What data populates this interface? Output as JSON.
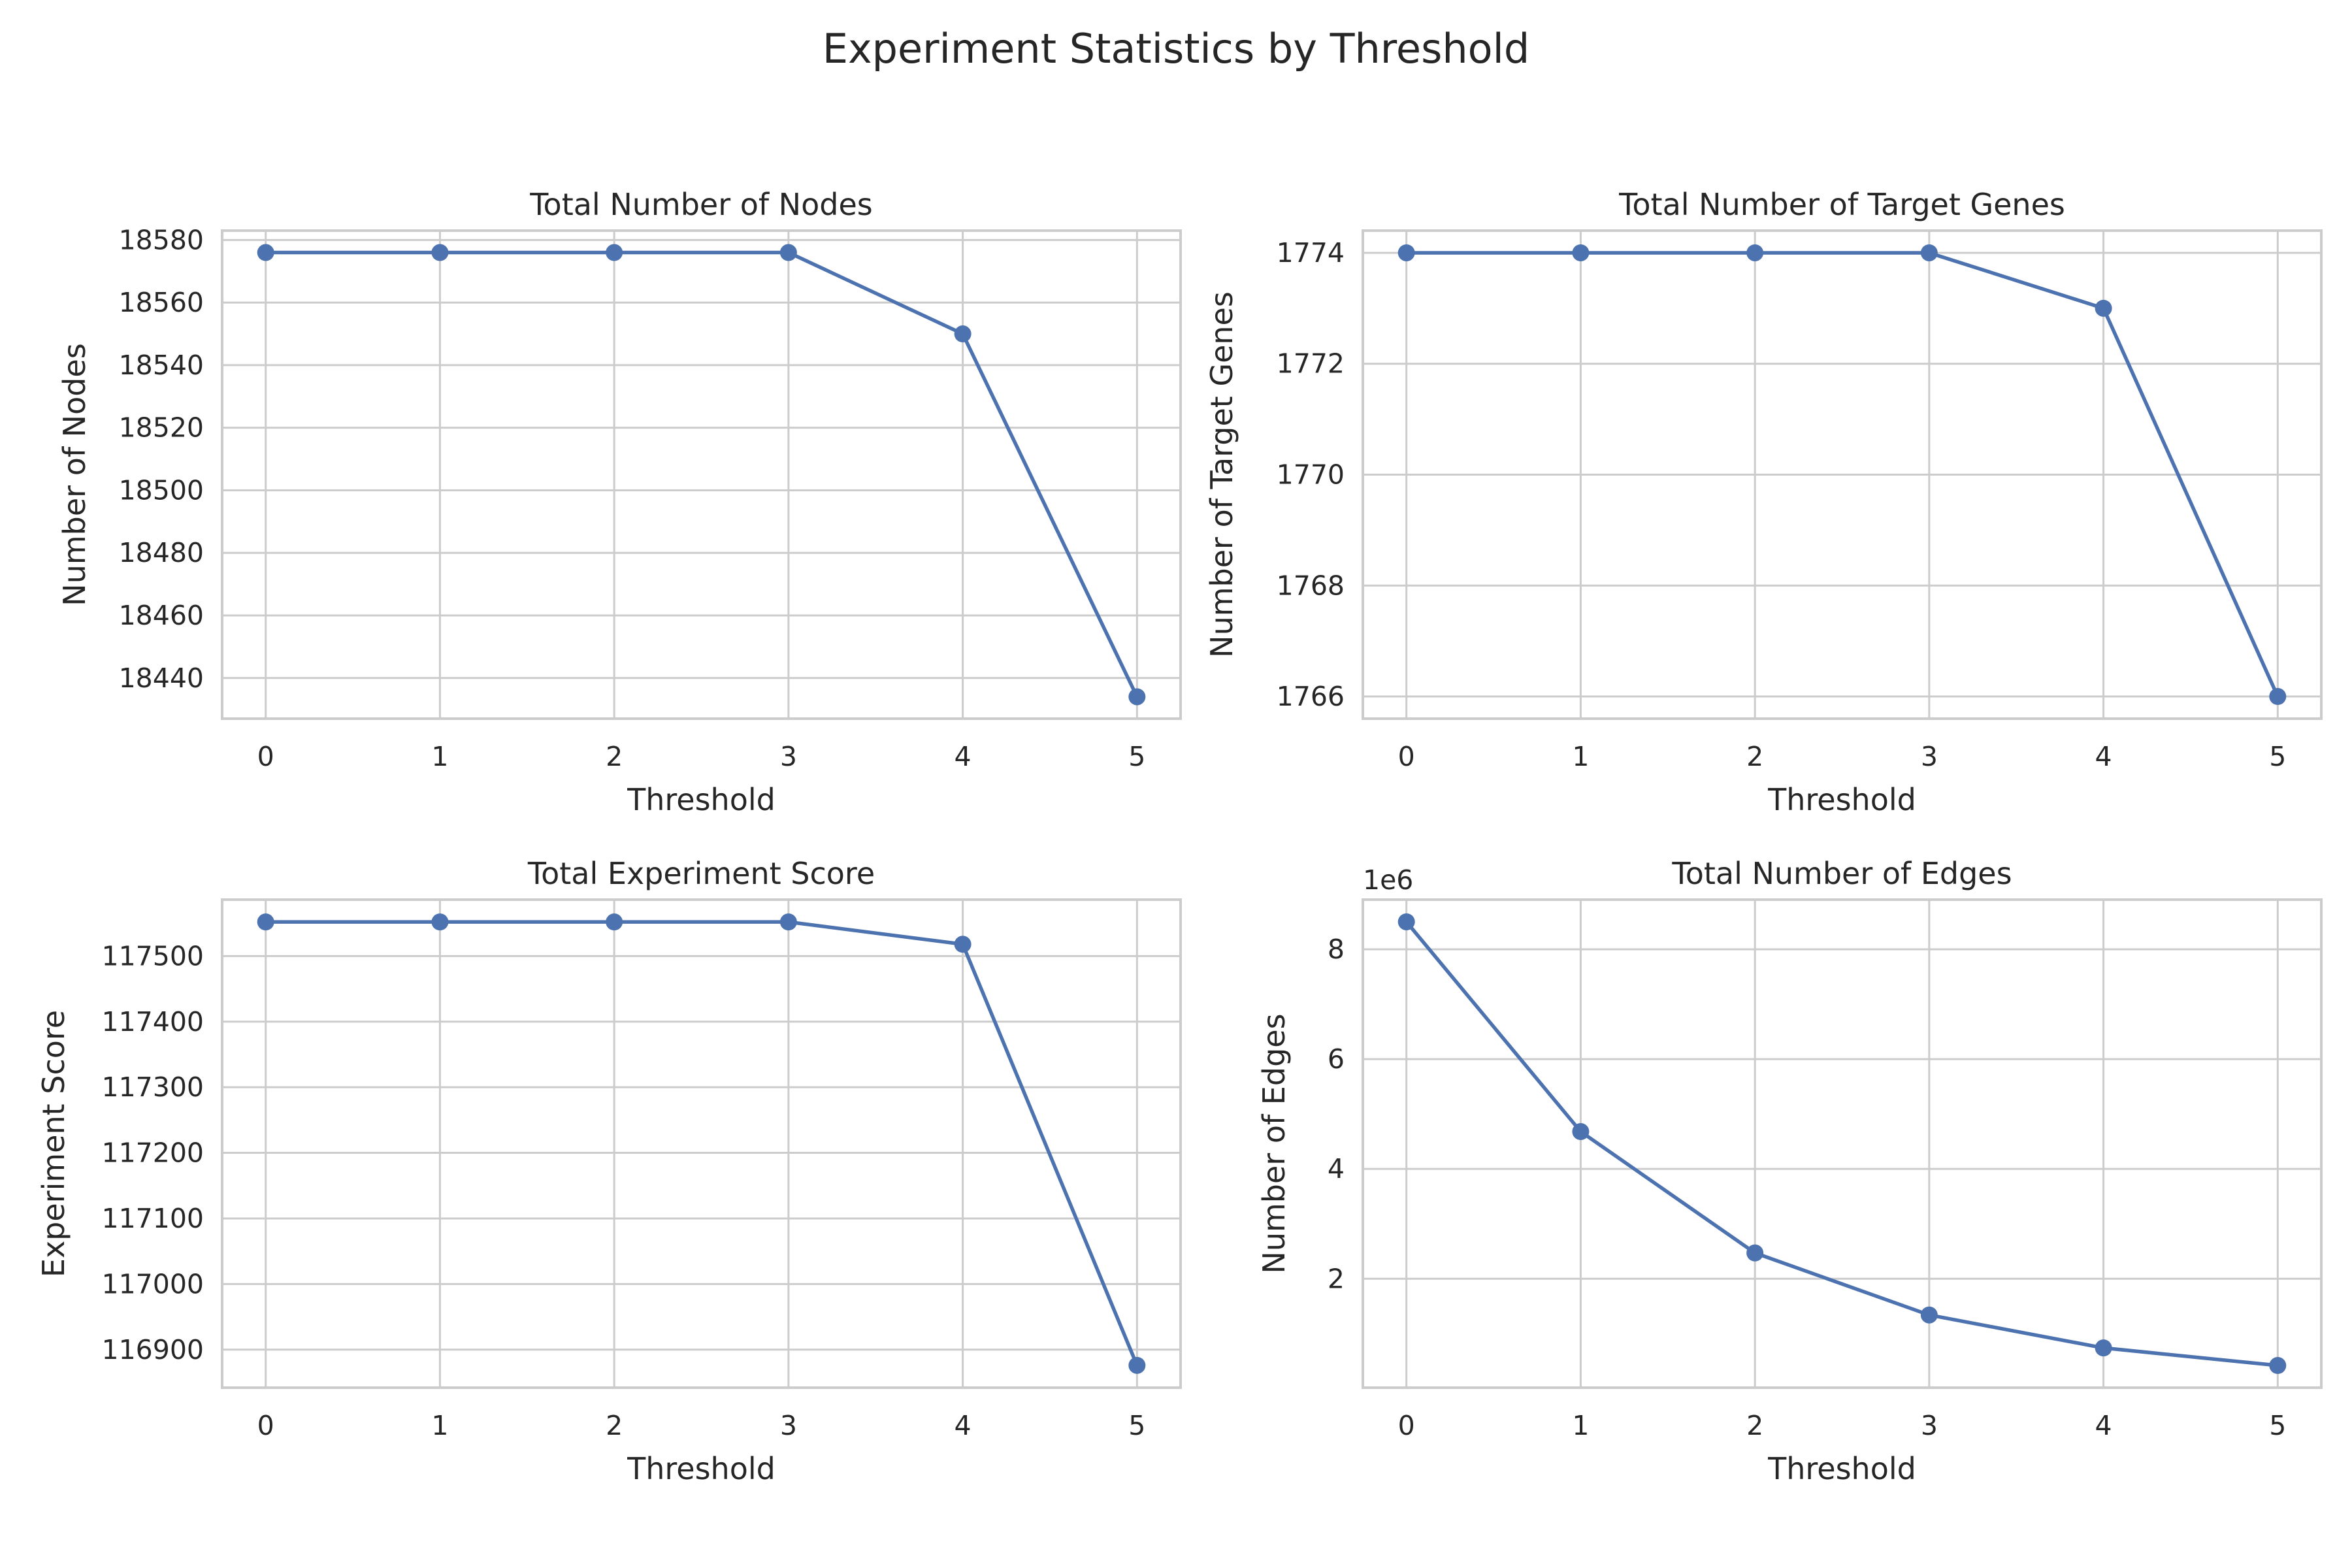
{
  "figure_title": "Experiment Statistics by Threshold",
  "colors": {
    "series": "#4c72b0",
    "grid": "#cccccc",
    "background": "#ffffff",
    "text": "#262626"
  },
  "chart_data": [
    {
      "type": "line",
      "title": "Total Number of Nodes",
      "xlabel": "Threshold",
      "ylabel": "Number of Nodes",
      "x": [
        0,
        1,
        2,
        3,
        4,
        5
      ],
      "y": [
        18576,
        18576,
        18576,
        18576,
        18550,
        18434
      ],
      "xlim": [
        -0.25,
        5.25
      ],
      "ylim": [
        18427,
        18583
      ],
      "xticks": [
        0,
        1,
        2,
        3,
        4,
        5
      ],
      "yticks": [
        18440,
        18460,
        18480,
        18500,
        18520,
        18540,
        18560,
        18580
      ],
      "ytick_labels": [
        "18440",
        "18460",
        "18480",
        "18500",
        "18520",
        "18540",
        "18560",
        "18580"
      ],
      "offset_label": "",
      "grid": true,
      "marker": "circle"
    },
    {
      "type": "line",
      "title": "Total Number of Target Genes",
      "xlabel": "Threshold",
      "ylabel": "Number of Target Genes",
      "x": [
        0,
        1,
        2,
        3,
        4,
        5
      ],
      "y": [
        1774,
        1774,
        1774,
        1774,
        1773,
        1766
      ],
      "xlim": [
        -0.25,
        5.25
      ],
      "ylim": [
        1765.6,
        1774.4
      ],
      "xticks": [
        0,
        1,
        2,
        3,
        4,
        5
      ],
      "yticks": [
        1766,
        1768,
        1770,
        1772,
        1774
      ],
      "ytick_labels": [
        "1766",
        "1768",
        "1770",
        "1772",
        "1774"
      ],
      "offset_label": "",
      "grid": true,
      "marker": "circle"
    },
    {
      "type": "line",
      "title": "Total Experiment Score",
      "xlabel": "Threshold",
      "ylabel": "Experiment Score",
      "x": [
        0,
        1,
        2,
        3,
        4,
        5
      ],
      "y": [
        117552,
        117552,
        117552,
        117552,
        117518,
        116876
      ],
      "xlim": [
        -0.25,
        5.25
      ],
      "ylim": [
        116842,
        117586
      ],
      "xticks": [
        0,
        1,
        2,
        3,
        4,
        5
      ],
      "yticks": [
        116900,
        117000,
        117100,
        117200,
        117300,
        117400,
        117500
      ],
      "ytick_labels": [
        "116900",
        "117000",
        "117100",
        "117200",
        "117300",
        "117400",
        "117500"
      ],
      "offset_label": "",
      "grid": true,
      "marker": "circle"
    },
    {
      "type": "line",
      "title": "Total Number of Edges",
      "xlabel": "Threshold",
      "ylabel": "Number of Edges",
      "x": [
        0,
        1,
        2,
        3,
        4,
        5
      ],
      "y": [
        8500000,
        4680000,
        2470000,
        1340000,
        740000,
        420000
      ],
      "xlim": [
        -0.25,
        5.25
      ],
      "ylim": [
        16000,
        8904000
      ],
      "xticks": [
        0,
        1,
        2,
        3,
        4,
        5
      ],
      "yticks": [
        2000000,
        4000000,
        6000000,
        8000000
      ],
      "ytick_labels": [
        "2",
        "4",
        "6",
        "8"
      ],
      "offset_label": "1e6",
      "grid": true,
      "marker": "circle"
    }
  ]
}
